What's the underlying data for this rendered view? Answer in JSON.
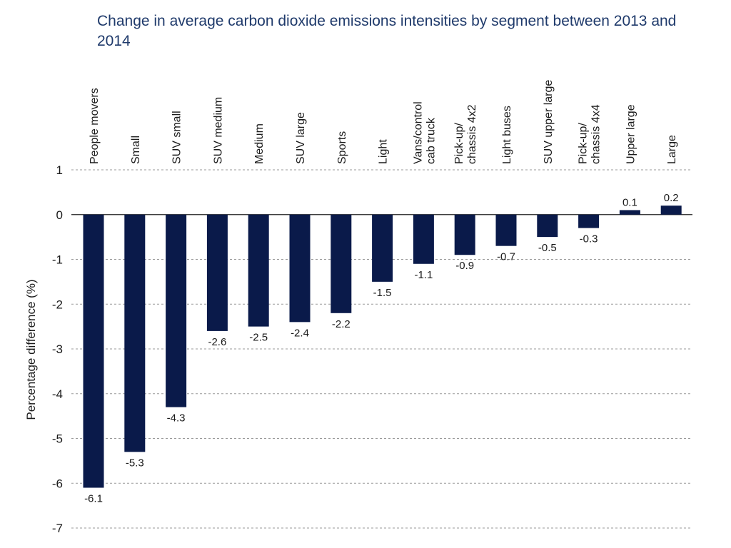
{
  "chart_data": {
    "type": "bar",
    "title": "Change in average carbon dioxide emissions intensities by segment between 2013 and 2014",
    "xlabel": "",
    "ylabel": "Percentage difference (%)",
    "ylim": [
      -7,
      1
    ],
    "yticks": [
      "1",
      "0",
      "-1",
      "-2",
      "-3",
      "-4",
      "-5",
      "-6",
      "-7"
    ],
    "grid": "horizontal-dashed",
    "bar_color": "#0a1a4a",
    "categories": [
      [
        "People movers"
      ],
      [
        "Small"
      ],
      [
        "SUV small"
      ],
      [
        "SUV medium"
      ],
      [
        "Medium"
      ],
      [
        "SUV large"
      ],
      [
        "Sports"
      ],
      [
        "Light"
      ],
      [
        "Vans/control",
        "cab truck"
      ],
      [
        "Pick-up/",
        "chassis 4x2"
      ],
      [
        "Light buses"
      ],
      [
        "SUV upper large"
      ],
      [
        "Pick-up/",
        "chassis 4x4"
      ],
      [
        "Upper large"
      ],
      [
        "Large"
      ]
    ],
    "values": [
      -6.1,
      -5.3,
      -4.3,
      -2.6,
      -2.5,
      -2.4,
      -2.2,
      -1.5,
      -1.1,
      -0.9,
      -0.7,
      -0.5,
      -0.3,
      0.1,
      0.2
    ],
    "value_labels": [
      "-6.1",
      "-5.3",
      "-4.3",
      "-2.6",
      "-2.5",
      "-2.4",
      "-2.2",
      "-1.5",
      "-1.1",
      "-0.9",
      "-0.7",
      "-0.5",
      "-0.3",
      "0.1",
      "0.2"
    ]
  }
}
